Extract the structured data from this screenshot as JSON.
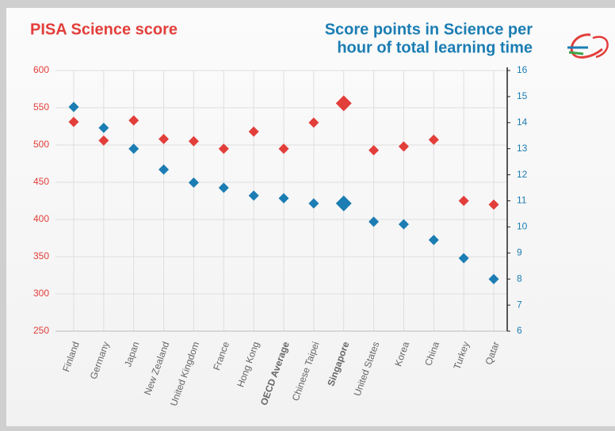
{
  "chart_data": {
    "type": "dual_scatter",
    "title": "PISA Science score",
    "right_title": [
      "Score points in Science per",
      "hour of total learning time"
    ],
    "categories": [
      "Finland",
      "Germany",
      "Japan",
      "New Zealand",
      "United Kingdom",
      "France",
      "Hong Kong",
      "OECD Average",
      "Chinese Taipei",
      "Singapore",
      "United States",
      "Korea",
      "China",
      "Turkey",
      "Qatar"
    ],
    "series": [
      {
        "color": "#e23e3a",
        "values": [
          531,
          506,
          533,
          508,
          505,
          495,
          518,
          495,
          530,
          556,
          493,
          498,
          507,
          425,
          420
        ]
      },
      {
        "color": "#1b7db3",
        "axis": "y2",
        "values": [
          14.6,
          13.8,
          13.0,
          12.2,
          11.7,
          11.5,
          11.2,
          11.1,
          10.9,
          10.9,
          10.2,
          10.1,
          9.5,
          8.8,
          8.0
        ]
      }
    ],
    "ylim": [
      250,
      600
    ],
    "yticks": [
      250,
      300,
      350,
      400,
      450,
      500,
      550,
      600
    ],
    "y2lim": [
      6,
      16
    ],
    "y2ticks": [
      6,
      7,
      8,
      9,
      10,
      11,
      12,
      13,
      14,
      15,
      16
    ],
    "grid": true,
    "bold_labels": [
      7,
      9
    ],
    "large_markers": [
      9
    ]
  }
}
